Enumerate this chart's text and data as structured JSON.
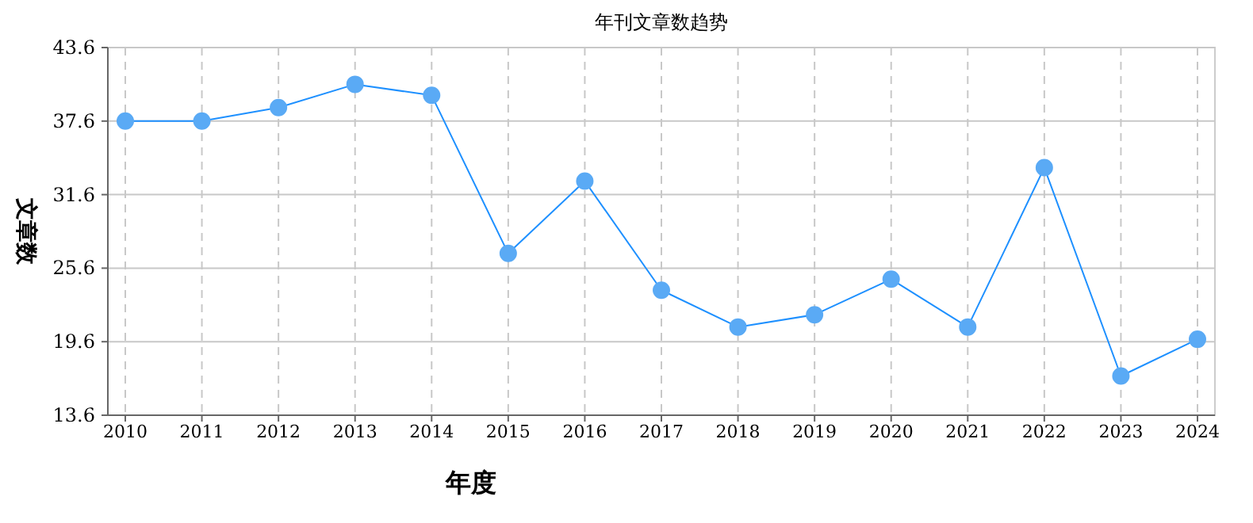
{
  "chart_data": {
    "type": "line",
    "title": "年刊文章数趋势",
    "xlabel": "年度",
    "ylabel": "文章数",
    "categories": [
      "2010",
      "2011",
      "2012",
      "2013",
      "2014",
      "2015",
      "2016",
      "2017",
      "2018",
      "2019",
      "2020",
      "2021",
      "2022",
      "2023",
      "2024"
    ],
    "series": [
      {
        "color": "#1e90ff",
        "values": [
          37.6,
          37.6,
          38.7,
          40.6,
          39.7,
          26.8,
          32.7,
          23.8,
          20.8,
          21.8,
          24.7,
          20.8,
          33.8,
          16.8,
          19.8
        ]
      }
    ],
    "ylim": [
      13.6,
      43.6
    ],
    "yticks": [
      13.6,
      19.6,
      25.6,
      31.6,
      37.6,
      43.6
    ],
    "grid": true,
    "marker": "circle",
    "line_style": "solid"
  }
}
